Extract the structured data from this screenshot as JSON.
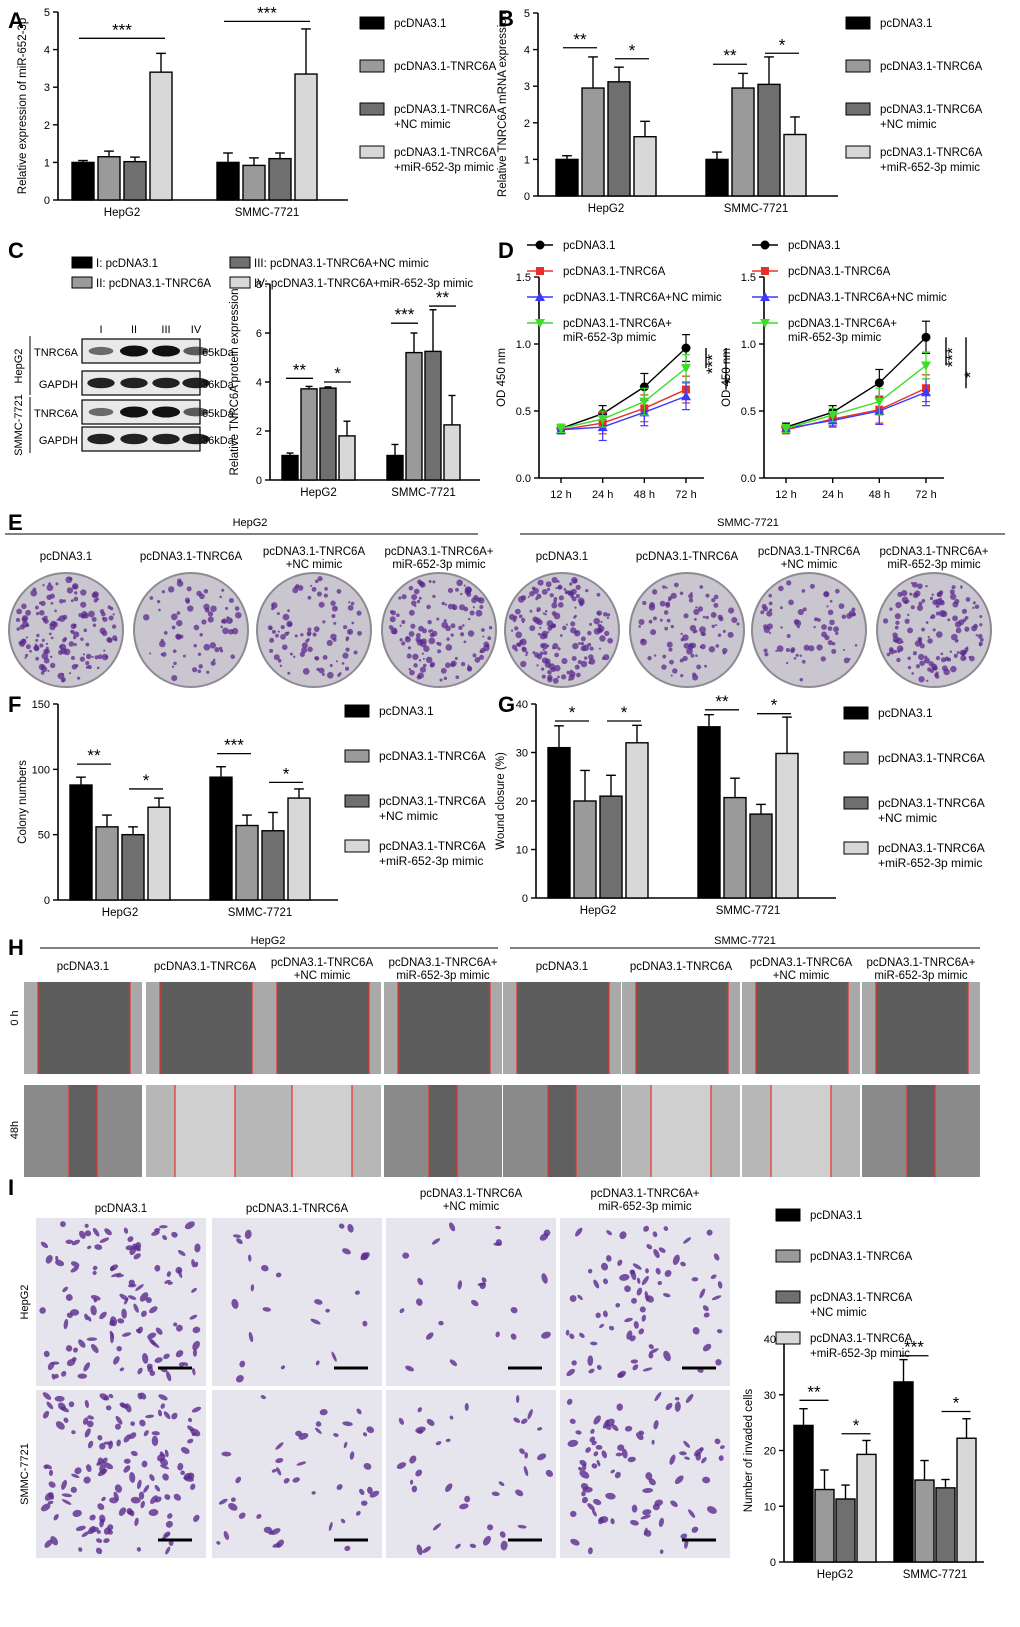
{
  "colors": {
    "black": "#000000",
    "dark": "#6f6f6f",
    "mid": "#9a9a9a",
    "light": "#d8d8d8",
    "red": "#e8302b",
    "blue": "#3a3aff",
    "green": "#3ddc2a",
    "purple": "#5b2a8e",
    "dish": "#c9c6cf"
  },
  "legend4": [
    "pcDNA3.1",
    "pcDNA3.1-TNRC6A",
    "pcDNA3.1-TNRC6A\n+NC mimic",
    "pcDNA3.1-TNRC6A\n+miR-652-3p mimic"
  ],
  "panels": {
    "A": {
      "letter": "A"
    },
    "B": {
      "letter": "B"
    },
    "C": {
      "letter": "C"
    },
    "D": {
      "letter": "D"
    },
    "E": {
      "letter": "E"
    },
    "F": {
      "letter": "F"
    },
    "G": {
      "letter": "G"
    },
    "H": {
      "letter": "H"
    },
    "I": {
      "letter": "I"
    }
  },
  "panelC": {
    "legend": [
      "I: pcDNA3.1",
      "II: pcDNA3.1-TNRC6A",
      "III: pcDNA3.1-TNRC6A+NC mimic",
      "IV: pcDNA3.1-TNRC6A+miR-652-3p mimic"
    ],
    "lanes": [
      "I",
      "II",
      "III",
      "IV"
    ],
    "rows": [
      {
        "cell": "HepG2",
        "protein": "TNRC6A",
        "kda": "65kDa",
        "intensity": [
          0.45,
          1.0,
          1.0,
          0.55
        ]
      },
      {
        "cell": "HepG2",
        "protein": "GAPDH",
        "kda": "36kDa",
        "intensity": [
          0.9,
          0.9,
          0.9,
          0.9
        ]
      },
      {
        "cell": "SMMC-7721",
        "protein": "TNRC6A",
        "kda": "65kDa",
        "intensity": [
          0.45,
          1.0,
          1.0,
          0.55
        ]
      },
      {
        "cell": "SMMC-7721",
        "protein": "GAPDH",
        "kda": "36kDa",
        "intensity": [
          0.9,
          0.9,
          0.9,
          0.9
        ]
      }
    ],
    "cell_labels": [
      "HepG2",
      "SMMC-7721"
    ]
  },
  "panelE": {
    "groups": [
      "HepG2",
      "SMMC-7721"
    ],
    "labels": [
      "pcDNA3.1",
      "pcDNA3.1-TNRC6A",
      "pcDNA3.1-TNRC6A\n+NC mimic",
      "pcDNA3.1-TNRC6A+\nmiR-652-3p mimic"
    ]
  },
  "panelH": {
    "groups": [
      "HepG2",
      "SMMC-7721"
    ],
    "labels": [
      "pcDNA3.1",
      "pcDNA3.1-TNRC6A",
      "pcDNA3.1-TNRC6A\n+NC mimic",
      "pcDNA3.1-TNRC6A+\nmiR-652-3p mimic"
    ],
    "rows": [
      "0 h",
      "48h"
    ]
  },
  "panelI": {
    "labels": [
      "pcDNA3.1",
      "pcDNA3.1-TNRC6A",
      "pcDNA3.1-TNRC6A\n+NC mimic",
      "pcDNA3.1-TNRC6A+\nmiR-652-3p mimic"
    ],
    "rows": [
      "HepG2",
      "SMMC-7721"
    ]
  },
  "chart_data": [
    {
      "id": "A",
      "type": "bar",
      "categories": [
        "HepG2",
        "SMMC-7721"
      ],
      "ylabel": "Relative expression of miR-652-3p",
      "ylim": [
        0,
        5
      ],
      "ticks": [
        0,
        1,
        2,
        3,
        4,
        5
      ],
      "series": [
        {
          "name": "pcDNA3.1",
          "values": [
            1.0,
            1.0
          ],
          "err": [
            0.05,
            0.25
          ]
        },
        {
          "name": "pcDNA3.1-TNRC6A",
          "values": [
            1.15,
            0.92
          ],
          "err": [
            0.15,
            0.2
          ]
        },
        {
          "name": "pcDNA3.1-TNRC6A+NC mimic",
          "values": [
            1.02,
            1.1
          ],
          "err": [
            0.12,
            0.15
          ]
        },
        {
          "name": "pcDNA3.1-TNRC6A+miR-652-3p mimic",
          "values": [
            3.4,
            3.35
          ],
          "err": [
            0.5,
            1.2
          ]
        }
      ],
      "sig": [
        {
          "a": 0,
          "b": 3,
          "g": 0,
          "label": "***",
          "y": 4.3
        },
        {
          "a": 0,
          "b": 3,
          "g": 1,
          "label": "***",
          "y": 4.75
        }
      ]
    },
    {
      "id": "B",
      "type": "bar",
      "categories": [
        "HepG2",
        "SMMC-7721"
      ],
      "ylabel": "Relative TNRC6A mRNA expression",
      "ylim": [
        0,
        5
      ],
      "ticks": [
        0,
        1,
        2,
        3,
        4,
        5
      ],
      "series": [
        {
          "name": "pcDNA3.1",
          "values": [
            1.0,
            1.0
          ],
          "err": [
            0.1,
            0.2
          ]
        },
        {
          "name": "pcDNA3.1-TNRC6A",
          "values": [
            2.95,
            2.95
          ],
          "err": [
            0.85,
            0.4
          ]
        },
        {
          "name": "pcDNA3.1-TNRC6A+NC mimic",
          "values": [
            3.12,
            3.05
          ],
          "err": [
            0.4,
            0.75
          ]
        },
        {
          "name": "pcDNA3.1-TNRC6A+miR-652-3p mimic",
          "values": [
            1.62,
            1.68
          ],
          "err": [
            0.42,
            0.48
          ]
        }
      ],
      "sig": [
        {
          "a": 0,
          "b": 1,
          "g": 0,
          "label": "**",
          "y": 4.05
        },
        {
          "a": 2,
          "b": 3,
          "g": 0,
          "label": "*",
          "y": 3.75
        },
        {
          "a": 0,
          "b": 1,
          "g": 1,
          "label": "**",
          "y": 3.6
        },
        {
          "a": 2,
          "b": 3,
          "g": 1,
          "label": "*",
          "y": 3.9
        }
      ]
    },
    {
      "id": "C",
      "type": "bar",
      "categories": [
        "HepG2",
        "SMMC-7721"
      ],
      "ylabel": "Relative TNRC6A protein expression",
      "ylim": [
        0,
        8
      ],
      "ticks": [
        0,
        2,
        4,
        6,
        8
      ],
      "series": [
        {
          "name": "I",
          "values": [
            1.0,
            1.0
          ],
          "err": [
            0.1,
            0.45
          ]
        },
        {
          "name": "II",
          "values": [
            3.72,
            5.2
          ],
          "err": [
            0.1,
            0.8
          ]
        },
        {
          "name": "III",
          "values": [
            3.75,
            5.25
          ],
          "err": [
            0.05,
            1.7
          ]
        },
        {
          "name": "IV",
          "values": [
            1.8,
            2.25
          ],
          "err": [
            0.6,
            1.2
          ]
        }
      ],
      "sig": [
        {
          "a": 0,
          "b": 1,
          "g": 0,
          "label": "**",
          "y": 4.15
        },
        {
          "a": 2,
          "b": 3,
          "g": 0,
          "label": "*",
          "y": 4.0
        },
        {
          "a": 0,
          "b": 1,
          "g": 1,
          "label": "***",
          "y": 6.4
        },
        {
          "a": 2,
          "b": 3,
          "g": 1,
          "label": "**",
          "y": 7.1
        }
      ]
    },
    {
      "id": "D1",
      "type": "line",
      "x": [
        "12 h",
        "24 h",
        "48 h",
        "72 h"
      ],
      "ylabel": "OD 450 nm",
      "ylim": [
        0,
        1.5
      ],
      "ticks": [
        0.0,
        0.5,
        1.0,
        1.5
      ],
      "series": [
        {
          "name": "pcDNA3.1",
          "values": [
            0.37,
            0.48,
            0.68,
            0.97
          ],
          "err": [
            0.03,
            0.06,
            0.1,
            0.1
          ]
        },
        {
          "name": "pcDNA3.1-TNRC6A",
          "values": [
            0.36,
            0.41,
            0.52,
            0.66
          ],
          "err": [
            0.03,
            0.08,
            0.1,
            0.1
          ]
        },
        {
          "name": "pcDNA3.1-TNRC6A+NC mimic",
          "values": [
            0.36,
            0.38,
            0.49,
            0.61
          ],
          "err": [
            0.03,
            0.1,
            0.1,
            0.1
          ]
        },
        {
          "name": "pcDNA3.1-TNRC6A+\nmiR-652-3p mimic",
          "values": [
            0.37,
            0.44,
            0.57,
            0.82
          ],
          "err": [
            0.03,
            0.06,
            0.1,
            0.1
          ]
        }
      ],
      "sig": [
        {
          "label": "***"
        },
        {
          "label": "*"
        }
      ]
    },
    {
      "id": "D2",
      "type": "line",
      "x": [
        "12 h",
        "24 h",
        "48 h",
        "72 h"
      ],
      "ylabel": "OD 450 nm",
      "ylim": [
        0,
        1.5
      ],
      "ticks": [
        0.0,
        0.5,
        1.0,
        1.5
      ],
      "series": [
        {
          "name": "pcDNA3.1",
          "values": [
            0.38,
            0.49,
            0.71,
            1.05
          ],
          "err": [
            0.03,
            0.05,
            0.1,
            0.12
          ]
        },
        {
          "name": "pcDNA3.1-TNRC6A",
          "values": [
            0.36,
            0.44,
            0.51,
            0.67
          ],
          "err": [
            0.03,
            0.05,
            0.1,
            0.1
          ]
        },
        {
          "name": "pcDNA3.1-TNRC6A+NC mimic",
          "values": [
            0.37,
            0.43,
            0.5,
            0.64
          ],
          "err": [
            0.03,
            0.05,
            0.1,
            0.1
          ]
        },
        {
          "name": "pcDNA3.1-TNRC6A+\nmiR-652-3p mimic",
          "values": [
            0.37,
            0.47,
            0.57,
            0.84
          ],
          "err": [
            0.03,
            0.05,
            0.1,
            0.1
          ]
        }
      ],
      "sig": [
        {
          "label": "***"
        },
        {
          "label": "*"
        }
      ]
    },
    {
      "id": "F",
      "type": "bar",
      "categories": [
        "HepG2",
        "SMMC-7721"
      ],
      "ylabel": "Colony numbers",
      "ylim": [
        0,
        150
      ],
      "ticks": [
        0,
        50,
        100,
        150
      ],
      "series": [
        {
          "name": "pcDNA3.1",
          "values": [
            88,
            94
          ],
          "err": [
            6,
            8
          ]
        },
        {
          "name": "pcDNA3.1-TNRC6A",
          "values": [
            56,
            57
          ],
          "err": [
            9,
            8
          ]
        },
        {
          "name": "pcDNA3.1-TNRC6A+NC mimic",
          "values": [
            50,
            53
          ],
          "err": [
            6,
            14
          ]
        },
        {
          "name": "pcDNA3.1-TNRC6A+miR-652-3p mimic",
          "values": [
            71,
            78
          ],
          "err": [
            7,
            7
          ]
        }
      ],
      "sig": [
        {
          "a": 0,
          "b": 1,
          "g": 0,
          "label": "**",
          "y": 104
        },
        {
          "a": 2,
          "b": 3,
          "g": 0,
          "label": "*",
          "y": 85
        },
        {
          "a": 0,
          "b": 1,
          "g": 1,
          "label": "***",
          "y": 112
        },
        {
          "a": 2,
          "b": 3,
          "g": 1,
          "label": "*",
          "y": 90
        }
      ]
    },
    {
      "id": "G",
      "type": "bar",
      "categories": [
        "HepG2",
        "SMMC-7721"
      ],
      "ylabel": "Wound closure (%)",
      "ylim": [
        0,
        40
      ],
      "ticks": [
        0,
        10,
        20,
        30,
        40
      ],
      "series": [
        {
          "name": "pcDNA3.1",
          "values": [
            31,
            35.3
          ],
          "err": [
            4.5,
            2.5
          ]
        },
        {
          "name": "pcDNA3.1-TNRC6A",
          "values": [
            20,
            20.7
          ],
          "err": [
            6.3,
            4
          ]
        },
        {
          "name": "pcDNA3.1-TNRC6A+NC mimic",
          "values": [
            21,
            17.3
          ],
          "err": [
            4.3,
            2
          ]
        },
        {
          "name": "pcDNA3.1-TNRC6A+miR-652-3p mimic",
          "values": [
            32,
            29.8
          ],
          "err": [
            3.6,
            7.5
          ]
        }
      ],
      "sig": [
        {
          "a": 0,
          "b": 1,
          "g": 0,
          "label": "*",
          "y": 36.5
        },
        {
          "a": 2,
          "b": 3,
          "g": 0,
          "label": "*",
          "y": 36.5
        },
        {
          "a": 0,
          "b": 1,
          "g": 1,
          "label": "**",
          "y": 38.8
        },
        {
          "a": 2,
          "b": 3,
          "g": 1,
          "label": "*",
          "y": 38.0
        }
      ]
    },
    {
      "id": "I",
      "type": "bar",
      "categories": [
        "HepG2",
        "SMMC-7721"
      ],
      "ylabel": "Number of invaded cells",
      "ylim": [
        0,
        40
      ],
      "ticks": [
        0,
        10,
        20,
        30,
        40
      ],
      "series": [
        {
          "name": "pcDNA3.1",
          "values": [
            24.5,
            32.3
          ],
          "err": [
            3,
            4
          ]
        },
        {
          "name": "pcDNA3.1-TNRC6A",
          "values": [
            13,
            14.7
          ],
          "err": [
            3.5,
            3.5
          ]
        },
        {
          "name": "pcDNA3.1-TNRC6A+NC mimic",
          "values": [
            11.3,
            13.3
          ],
          "err": [
            2.5,
            1.5
          ]
        },
        {
          "name": "pcDNA3.1-TNRC6A+miR-652-3p mimic",
          "values": [
            19.3,
            22.2
          ],
          "err": [
            2.5,
            3.5
          ]
        }
      ],
      "sig": [
        {
          "a": 0,
          "b": 1,
          "g": 0,
          "label": "**",
          "y": 29
        },
        {
          "a": 2,
          "b": 3,
          "g": 0,
          "label": "*",
          "y": 23
        },
        {
          "a": 0,
          "b": 1,
          "g": 1,
          "label": "***",
          "y": 37
        },
        {
          "a": 2,
          "b": 3,
          "g": 1,
          "label": "*",
          "y": 27
        }
      ]
    }
  ]
}
